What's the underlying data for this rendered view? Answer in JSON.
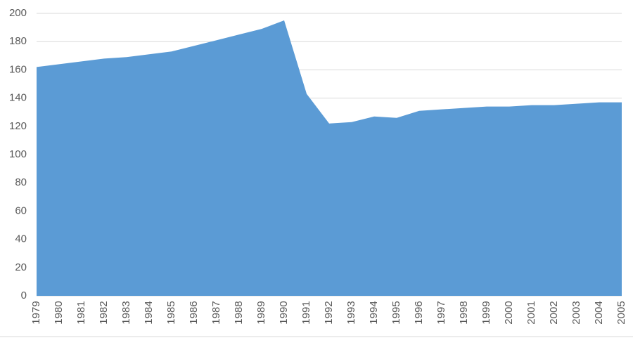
{
  "chart_data": {
    "type": "area",
    "categories": [
      "1979",
      "1980",
      "1981",
      "1982",
      "1983",
      "1984",
      "1985",
      "1986",
      "1987",
      "1988",
      "1989",
      "1990",
      "1991",
      "1992",
      "1993",
      "1994",
      "1995",
      "1996",
      "1997",
      "1998",
      "1999",
      "2000",
      "2001",
      "2002",
      "2003",
      "2004",
      "2005"
    ],
    "values": [
      162,
      164,
      166,
      168,
      169,
      171,
      173,
      177,
      181,
      185,
      189,
      195,
      143,
      122,
      123,
      127,
      126,
      131,
      132,
      133,
      134,
      134,
      135,
      135,
      136,
      137,
      137
    ],
    "color": "#5b9bd5",
    "ylim": [
      0,
      200
    ],
    "yticks": [
      0,
      20,
      40,
      60,
      80,
      100,
      120,
      140,
      160,
      180,
      200
    ],
    "grid": true
  }
}
